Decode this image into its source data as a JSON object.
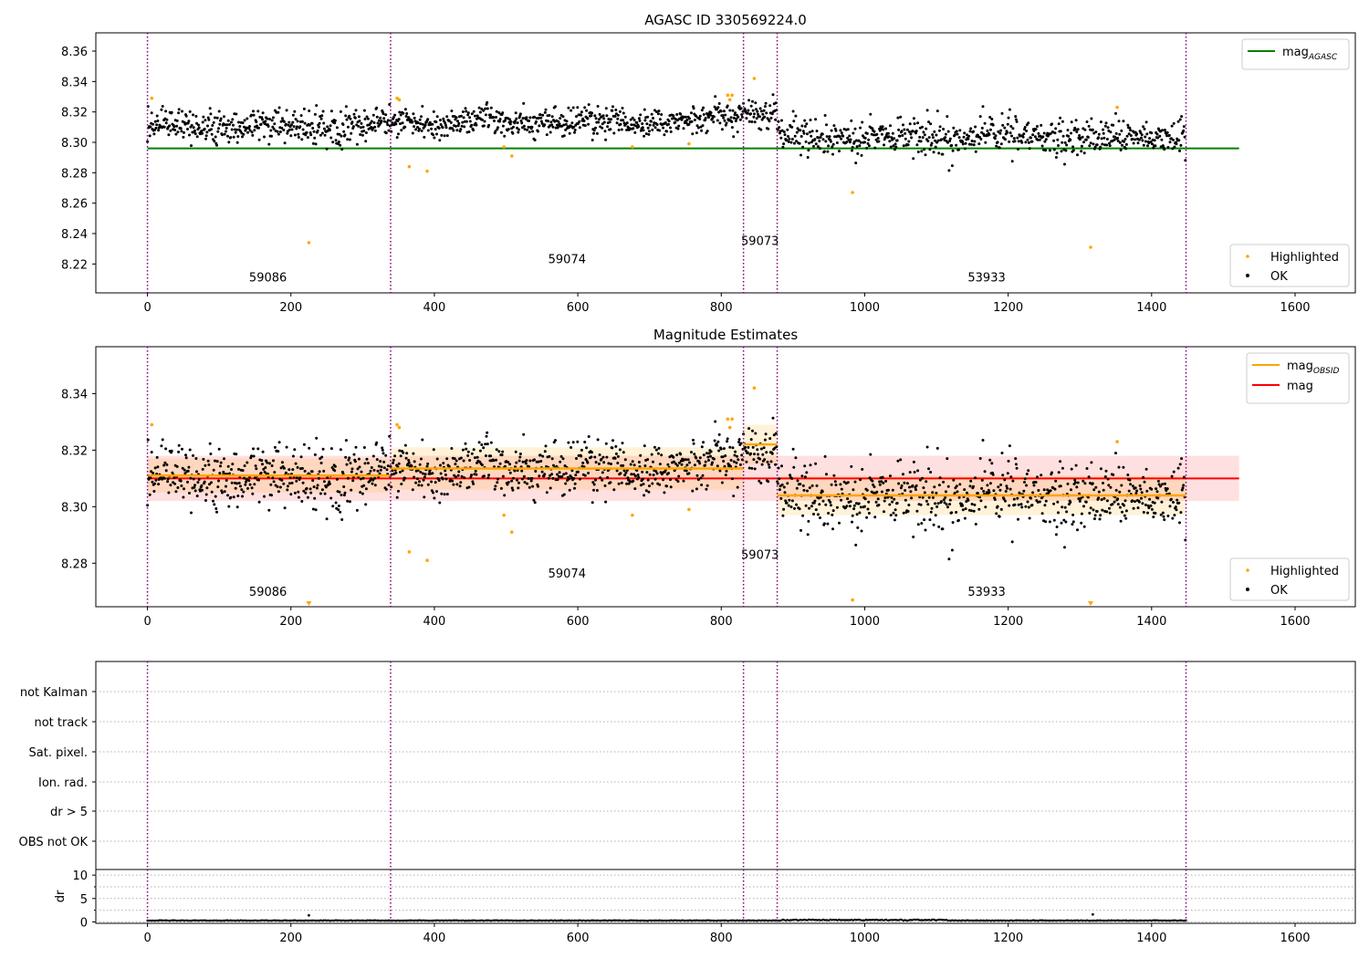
{
  "chart_data": [
    {
      "type": "scatter",
      "title": "AGASC ID 330569224.0",
      "xlim": [
        -72,
        1684
      ],
      "ylim": [
        8.201,
        8.372
      ],
      "xticks": [
        0,
        200,
        400,
        600,
        800,
        1000,
        1200,
        1400,
        1600
      ],
      "yticks": [
        8.22,
        8.24,
        8.26,
        8.28,
        8.3,
        8.32,
        8.34,
        8.36
      ],
      "ytick_labels": [
        "8.22",
        "8.24",
        "8.26",
        "8.28",
        "8.30",
        "8.32",
        "8.34",
        "8.36"
      ],
      "obsid_boundaries": [
        0,
        339,
        831,
        878,
        1448
      ],
      "obsid_labels": [
        {
          "text": "59086",
          "x": 168,
          "y": 8.2085
        },
        {
          "text": "59074",
          "x": 585,
          "y": 8.2205
        },
        {
          "text": "59073",
          "x": 854,
          "y": 8.2325
        },
        {
          "text": "53933",
          "x": 1170,
          "y": 8.2085
        }
      ],
      "mag_agasc": 8.296,
      "legend_top": {
        "position": "top-right",
        "entries": [
          {
            "label": "mag",
            "sub": "AGASC",
            "color": "#008000"
          }
        ]
      },
      "legend_bottom": {
        "position": "bottom-right",
        "entries": [
          {
            "label": "Highlighted",
            "color": "#ffa500"
          },
          {
            "label": "OK",
            "color": "#000000"
          }
        ]
      },
      "highlighted_points": [
        {
          "x": 6,
          "y": 8.329
        },
        {
          "x": 225,
          "y": 8.234
        },
        {
          "x": 348,
          "y": 8.329
        },
        {
          "x": 351,
          "y": 8.328
        },
        {
          "x": 365,
          "y": 8.284
        },
        {
          "x": 390,
          "y": 8.281
        },
        {
          "x": 497,
          "y": 8.297
        },
        {
          "x": 508,
          "y": 8.291
        },
        {
          "x": 676,
          "y": 8.297
        },
        {
          "x": 755,
          "y": 8.299
        },
        {
          "x": 809,
          "y": 8.331
        },
        {
          "x": 812,
          "y": 8.328
        },
        {
          "x": 815,
          "y": 8.331
        },
        {
          "x": 846,
          "y": 8.342
        },
        {
          "x": 983,
          "y": 8.267
        },
        {
          "x": 1315,
          "y": 8.231
        },
        {
          "x": 1352,
          "y": 8.323
        }
      ]
    },
    {
      "type": "scatter",
      "title": "Magnitude Estimates",
      "xlim": [
        -72,
        1684
      ],
      "ylim": [
        8.2646,
        8.3566
      ],
      "xticks": [
        0,
        200,
        400,
        600,
        800,
        1000,
        1200,
        1400,
        1600
      ],
      "yticks": [
        8.28,
        8.3,
        8.32,
        8.34
      ],
      "ytick_labels": [
        "8.28",
        "8.30",
        "8.32",
        "8.34"
      ],
      "obsid_boundaries": [
        0,
        339,
        831,
        878,
        1448
      ],
      "obsid_labels": [
        {
          "text": "59086",
          "x": 168,
          "y": 8.2685
        },
        {
          "text": "59074",
          "x": 585,
          "y": 8.275
        },
        {
          "text": "59073",
          "x": 854,
          "y": 8.2815
        },
        {
          "text": "53933",
          "x": 1170,
          "y": 8.2685
        }
      ],
      "mag": 8.31,
      "mag_band": [
        8.302,
        8.318
      ],
      "mag_band_xrange": [
        0,
        1522
      ],
      "mag_obsid": [
        {
          "x0": 0,
          "x1": 339,
          "y": 8.311,
          "lo": 8.305,
          "hi": 8.317
        },
        {
          "x0": 339,
          "x1": 831,
          "y": 8.3135,
          "lo": 8.306,
          "hi": 8.321
        },
        {
          "x0": 831,
          "x1": 878,
          "y": 8.322,
          "lo": 8.315,
          "hi": 8.329
        },
        {
          "x0": 878,
          "x1": 1448,
          "y": 8.304,
          "lo": 8.297,
          "hi": 8.311
        }
      ],
      "legend_top": {
        "position": "top-right",
        "entries": [
          {
            "label": "mag",
            "sub": "OBSID",
            "color": "#ffa500"
          },
          {
            "label": "mag",
            "sub": "",
            "color": "#ff0000"
          }
        ]
      },
      "legend_bottom": {
        "position": "bottom-right",
        "entries": [
          {
            "label": "Highlighted",
            "color": "#ffa500"
          },
          {
            "label": "OK",
            "color": "#000000"
          }
        ]
      },
      "highlighted_points": [
        {
          "x": 6,
          "y": 8.329
        },
        {
          "x": 348,
          "y": 8.329
        },
        {
          "x": 351,
          "y": 8.328
        },
        {
          "x": 365,
          "y": 8.284
        },
        {
          "x": 390,
          "y": 8.281
        },
        {
          "x": 497,
          "y": 8.297
        },
        {
          "x": 508,
          "y": 8.291
        },
        {
          "x": 676,
          "y": 8.297
        },
        {
          "x": 755,
          "y": 8.299
        },
        {
          "x": 809,
          "y": 8.331
        },
        {
          "x": 812,
          "y": 8.328
        },
        {
          "x": 815,
          "y": 8.331
        },
        {
          "x": 846,
          "y": 8.342
        },
        {
          "x": 983,
          "y": 8.267
        },
        {
          "x": 1352,
          "y": 8.323
        }
      ],
      "offscale_markers": [
        {
          "x": 225
        },
        {
          "x": 1315
        }
      ]
    },
    {
      "type": "scatter",
      "title": "",
      "xlim": [
        -72,
        1684
      ],
      "flag_rows": [
        "not Kalman",
        "not track",
        "Sat. pixel.",
        "Ion. rad.",
        "dr > 5",
        "OBS not OK"
      ],
      "obsid_boundaries": [
        0,
        339,
        831,
        878,
        1448
      ]
    },
    {
      "type": "scatter",
      "ylabel": "dr",
      "xlim": [
        -72,
        1684
      ],
      "ylim": [
        -0.3,
        11.2
      ],
      "yticks": [
        0,
        5,
        10
      ],
      "ytick_labels": [
        "0",
        "5",
        "10"
      ],
      "xticks": [
        0,
        200,
        400,
        600,
        800,
        1000,
        1200,
        1400,
        1600
      ],
      "obsid_boundaries": [
        0,
        339,
        831,
        878,
        1448
      ],
      "dr_spikes": [
        {
          "x": 225,
          "y": 1.4
        },
        {
          "x": 1318,
          "y": 1.6
        }
      ]
    }
  ],
  "ok_series_segments": [
    {
      "x0": 0,
      "x1": 339,
      "n": 400,
      "mean": 8.311,
      "sd": 0.0055
    },
    {
      "x0": 339,
      "x1": 790,
      "n": 540,
      "mean": 8.3135,
      "sd": 0.0045
    },
    {
      "x0": 790,
      "x1": 831,
      "n": 50,
      "mean": 8.319,
      "sd": 0.004
    },
    {
      "x0": 831,
      "x1": 878,
      "n": 56,
      "mean": 8.322,
      "sd": 0.005
    },
    {
      "x0": 878,
      "x1": 1448,
      "n": 640,
      "mean": 8.304,
      "sd": 0.0055
    }
  ],
  "colors": {
    "ok": "#000000",
    "highlighted": "#ffa500",
    "agasc": "#008000",
    "mag": "#ff0000",
    "mag_obsid": "#ffa500",
    "boundary": "#800080",
    "grid": "#b0b0b0"
  }
}
